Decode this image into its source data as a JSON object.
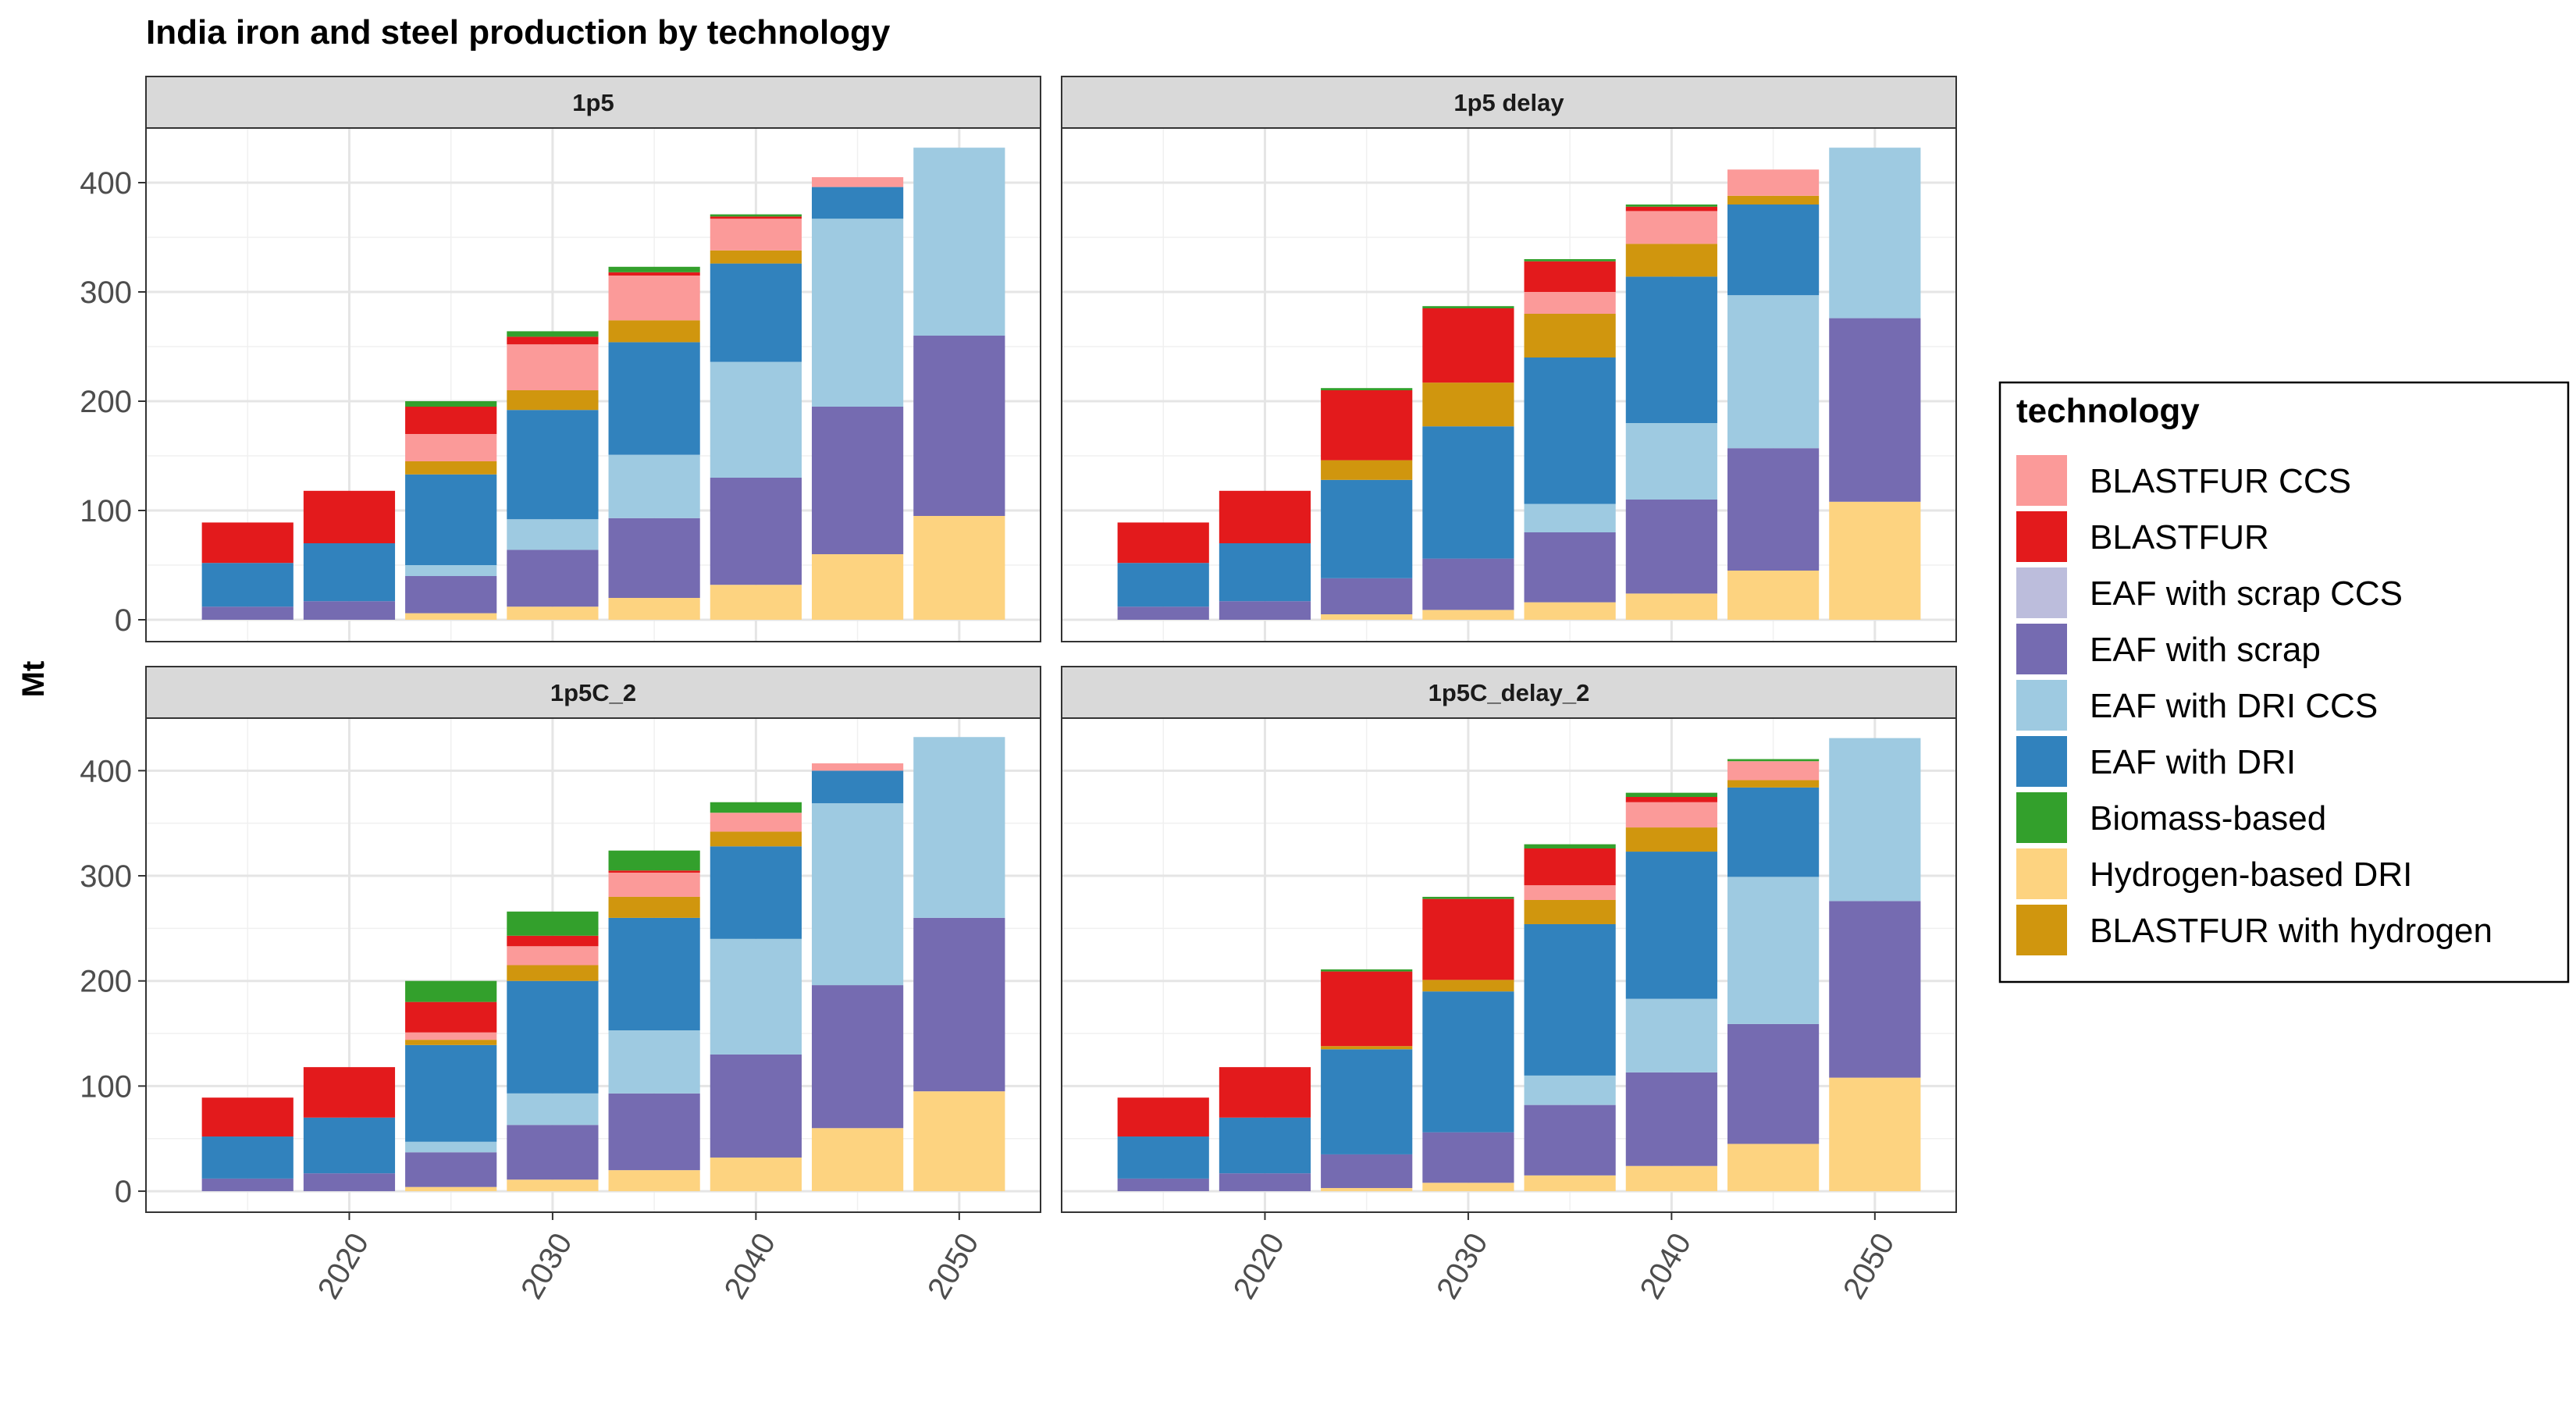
{
  "chart_data": {
    "type": "bar",
    "stacked": true,
    "faceted": true,
    "title": "India iron and steel production by technology",
    "ylabel": "Mt",
    "xlabel": "",
    "ylim": [
      0,
      450
    ],
    "xlim": [
      2010,
      2054
    ],
    "x_ticks": [
      2020,
      2030,
      2040,
      2050
    ],
    "y_ticks": [
      0,
      100,
      200,
      300,
      400
    ],
    "grid": true,
    "legend": {
      "title": "technology",
      "position": "right",
      "entries": [
        {
          "name": "BLASTFUR CCS",
          "color": "#FB9A99"
        },
        {
          "name": "BLASTFUR",
          "color": "#E31A1C"
        },
        {
          "name": "EAF with scrap CCS",
          "color": "#BCBDDC"
        },
        {
          "name": "EAF with scrap",
          "color": "#756BB1"
        },
        {
          "name": "EAF with DRI CCS",
          "color": "#9ECAE1"
        },
        {
          "name": "EAF with DRI",
          "color": "#3182BD"
        },
        {
          "name": "Biomass-based",
          "color": "#33A02C"
        },
        {
          "name": "Hydrogen-based DRI",
          "color": "#FDD380"
        },
        {
          "name": "BLASTFUR with hydrogen",
          "color": "#D0960E"
        }
      ]
    },
    "stack_order_bottom_to_top": [
      "Hydrogen-based DRI",
      "EAF with scrap",
      "EAF with scrap CCS",
      "EAF with DRI CCS",
      "EAF with DRI",
      "BLASTFUR with hydrogen",
      "BLASTFUR CCS",
      "BLASTFUR",
      "Biomass-based"
    ],
    "x": [
      2015,
      2020,
      2025,
      2030,
      2035,
      2040,
      2045,
      2050
    ],
    "panels": [
      {
        "name": "1p5",
        "series": [
          {
            "name": "Hydrogen-based DRI",
            "values": [
              0,
              0,
              6,
              12,
              20,
              32,
              60,
              95
            ]
          },
          {
            "name": "EAF with scrap",
            "values": [
              12,
              17,
              34,
              52,
              73,
              98,
              135,
              165
            ]
          },
          {
            "name": "EAF with scrap CCS",
            "values": [
              0,
              0,
              0,
              0,
              0,
              0,
              0,
              0
            ]
          },
          {
            "name": "EAF with DRI CCS",
            "values": [
              0,
              0,
              10,
              28,
              58,
              106,
              172,
              172
            ]
          },
          {
            "name": "EAF with DRI",
            "values": [
              40,
              53,
              83,
              100,
              103,
              90,
              29,
              0
            ]
          },
          {
            "name": "BLASTFUR with hydrogen",
            "values": [
              0,
              0,
              12,
              18,
              20,
              12,
              0,
              0
            ]
          },
          {
            "name": "BLASTFUR CCS",
            "values": [
              0,
              0,
              25,
              42,
              41,
              29,
              9,
              0
            ]
          },
          {
            "name": "BLASTFUR",
            "values": [
              37,
              48,
              25,
              7,
              3,
              2,
              0,
              0
            ]
          },
          {
            "name": "Biomass-based",
            "values": [
              0,
              0,
              5,
              5,
              5,
              2,
              0,
              0
            ]
          }
        ]
      },
      {
        "name": "1p5 delay",
        "series": [
          {
            "name": "Hydrogen-based DRI",
            "values": [
              0,
              0,
              5,
              9,
              16,
              24,
              45,
              108
            ]
          },
          {
            "name": "EAF with scrap",
            "values": [
              12,
              17,
              33,
              47,
              64,
              86,
              112,
              168
            ]
          },
          {
            "name": "EAF with scrap CCS",
            "values": [
              0,
              0,
              0,
              0,
              0,
              0,
              0,
              0
            ]
          },
          {
            "name": "EAF with DRI CCS",
            "values": [
              0,
              0,
              0,
              0,
              26,
              70,
              140,
              156
            ]
          },
          {
            "name": "EAF with DRI",
            "values": [
              40,
              53,
              90,
              121,
              134,
              134,
              83,
              0
            ]
          },
          {
            "name": "BLASTFUR with hydrogen",
            "values": [
              0,
              0,
              18,
              40,
              40,
              30,
              8,
              0
            ]
          },
          {
            "name": "BLASTFUR CCS",
            "values": [
              0,
              0,
              0,
              0,
              20,
              30,
              24,
              0
            ]
          },
          {
            "name": "BLASTFUR",
            "values": [
              37,
              48,
              64,
              68,
              28,
              4,
              0,
              0
            ]
          },
          {
            "name": "Biomass-based",
            "values": [
              0,
              0,
              2,
              2,
              2,
              2,
              0,
              0
            ]
          }
        ]
      },
      {
        "name": "1p5C_2",
        "series": [
          {
            "name": "Hydrogen-based DRI",
            "values": [
              0,
              0,
              4,
              11,
              20,
              32,
              60,
              95
            ]
          },
          {
            "name": "EAF with scrap",
            "values": [
              12,
              17,
              33,
              52,
              73,
              98,
              136,
              165
            ]
          },
          {
            "name": "EAF with scrap CCS",
            "values": [
              0,
              0,
              0,
              0,
              0,
              0,
              0,
              0
            ]
          },
          {
            "name": "EAF with DRI CCS",
            "values": [
              0,
              0,
              10,
              30,
              60,
              110,
              173,
              172
            ]
          },
          {
            "name": "EAF with DRI",
            "values": [
              40,
              53,
              92,
              107,
              107,
              88,
              31,
              0
            ]
          },
          {
            "name": "BLASTFUR with hydrogen",
            "values": [
              0,
              0,
              5,
              15,
              20,
              14,
              0,
              0
            ]
          },
          {
            "name": "BLASTFUR CCS",
            "values": [
              0,
              0,
              7,
              18,
              23,
              18,
              7,
              0
            ]
          },
          {
            "name": "BLASTFUR",
            "values": [
              37,
              48,
              29,
              10,
              2,
              0,
              0,
              0
            ]
          },
          {
            "name": "Biomass-based",
            "values": [
              0,
              0,
              20,
              23,
              19,
              10,
              0,
              0
            ]
          }
        ]
      },
      {
        "name": "1p5C_delay_2",
        "series": [
          {
            "name": "Hydrogen-based DRI",
            "values": [
              0,
              0,
              3,
              8,
              15,
              24,
              45,
              108
            ]
          },
          {
            "name": "EAF with scrap",
            "values": [
              12,
              17,
              32,
              48,
              67,
              89,
              114,
              168
            ]
          },
          {
            "name": "EAF with scrap CCS",
            "values": [
              0,
              0,
              0,
              0,
              0,
              0,
              0,
              0
            ]
          },
          {
            "name": "EAF with DRI CCS",
            "values": [
              0,
              0,
              0,
              0,
              28,
              70,
              140,
              155
            ]
          },
          {
            "name": "EAF with DRI",
            "values": [
              40,
              53,
              100,
              134,
              144,
              140,
              85,
              0
            ]
          },
          {
            "name": "BLASTFUR with hydrogen",
            "values": [
              0,
              0,
              3,
              11,
              23,
              23,
              7,
              0
            ]
          },
          {
            "name": "BLASTFUR CCS",
            "values": [
              0,
              0,
              0,
              0,
              14,
              24,
              18,
              0
            ]
          },
          {
            "name": "BLASTFUR",
            "values": [
              37,
              48,
              71,
              77,
              35,
              5,
              0,
              0
            ]
          },
          {
            "name": "Biomass-based",
            "values": [
              0,
              0,
              2,
              2,
              4,
              4,
              2,
              0
            ]
          }
        ]
      }
    ]
  }
}
